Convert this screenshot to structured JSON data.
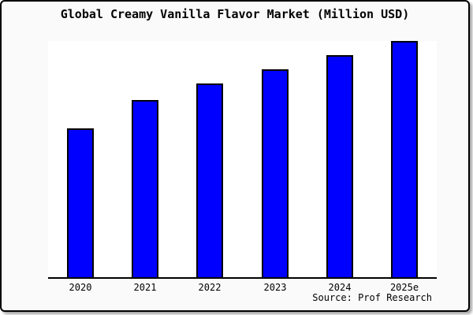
{
  "title": "Global Creamy Vanilla Flavor Market (Million USD)",
  "source_credit": "Source: Prof Research",
  "colors": {
    "bar_fill": "#0000ff",
    "bar_border": "#000000",
    "card_background": "#fafafa",
    "plot_background": "#ffffff",
    "axis": "#000000",
    "text": "#000000"
  },
  "chart_data": {
    "type": "bar",
    "title": "Global Creamy Vanilla Flavor Market (Million USD)",
    "categories": [
      "2020",
      "2021",
      "2022",
      "2023",
      "2024",
      "2025e"
    ],
    "values": [
      63,
      75,
      82,
      88,
      94,
      100
    ],
    "values_estimation": "relative scale estimated from bar heights; 2025e = 100 (no y-axis labels shown)",
    "xlabel": "",
    "ylabel": "",
    "ylim": [
      0,
      100
    ],
    "y_axis_visible": false,
    "grid": false,
    "legend": false,
    "annotations": [
      "Source: Prof Research"
    ]
  }
}
